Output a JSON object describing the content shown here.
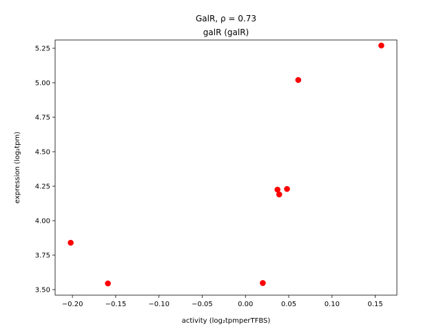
{
  "chart_data": {
    "type": "scatter",
    "title": "GalR, ρ = 0.73",
    "subtitle": "galR (galR)",
    "xlabel": "activity (log₂tpmperTFBS)",
    "ylabel": "expression (log₂tpm)",
    "xlim": [
      -0.22,
      0.175
    ],
    "ylim": [
      3.46,
      5.31
    ],
    "xticks": [
      -0.2,
      -0.15,
      -0.1,
      -0.05,
      0.0,
      0.05,
      0.1,
      0.15
    ],
    "xtick_labels": [
      "−0.20",
      "−0.15",
      "−0.10",
      "−0.05",
      "0.00",
      "0.05",
      "0.10",
      "0.15"
    ],
    "yticks": [
      3.5,
      3.75,
      4.0,
      4.25,
      4.5,
      4.75,
      5.0,
      5.25
    ],
    "ytick_labels": [
      "3.50",
      "3.75",
      "4.00",
      "4.25",
      "4.50",
      "4.75",
      "5.00",
      "5.25"
    ],
    "grid": false,
    "marker_color": "#ff0000",
    "points": [
      {
        "x": -0.202,
        "y": 3.84
      },
      {
        "x": -0.159,
        "y": 3.545
      },
      {
        "x": 0.02,
        "y": 3.548
      },
      {
        "x": 0.037,
        "y": 4.225
      },
      {
        "x": 0.039,
        "y": 4.19
      },
      {
        "x": 0.048,
        "y": 4.23
      },
      {
        "x": 0.061,
        "y": 5.02
      },
      {
        "x": 0.157,
        "y": 5.27
      }
    ]
  }
}
